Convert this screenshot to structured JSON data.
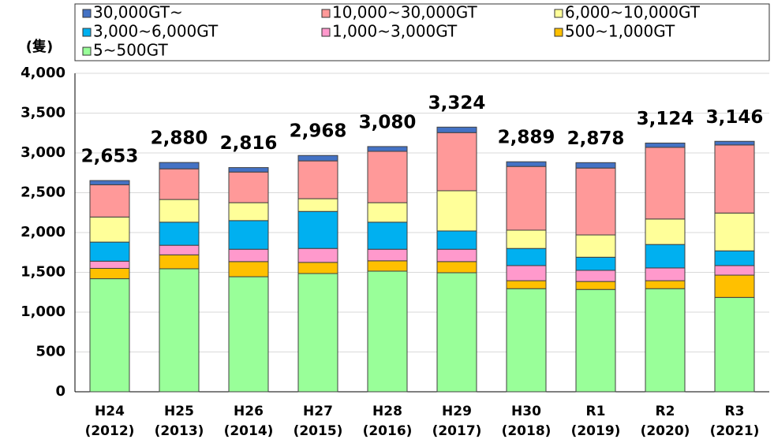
{
  "chart_data": {
    "type": "stacked_bar",
    "y_axis_label": "(隻)",
    "categories": [
      "H24",
      "H25",
      "H26",
      "H27",
      "H28",
      "H29",
      "H30",
      "R1",
      "R2",
      "R3"
    ],
    "category_years": [
      "(2012)",
      "(2013)",
      "(2014)",
      "(2015)",
      "(2016)",
      "(2017)",
      "(2018)",
      "(2019)",
      "(2020)",
      "(2021)"
    ],
    "series": [
      {
        "name": "30,000GT~",
        "color": "#4472c4",
        "values": [
          53,
          80,
          56,
          68,
          60,
          69,
          59,
          68,
          54,
          46
        ]
      },
      {
        "name": "10,000~30,000GT",
        "color": "#ff9999",
        "values": [
          405,
          385,
          385,
          475,
          645,
          730,
          800,
          840,
          900,
          855
        ]
      },
      {
        "name": "6,000~10,000GT",
        "color": "#ffff99",
        "values": [
          315,
          285,
          225,
          160,
          245,
          505,
          230,
          280,
          320,
          475
        ]
      },
      {
        "name": "3,000~6,000GT",
        "color": "#00b0f0",
        "values": [
          240,
          290,
          360,
          465,
          340,
          230,
          215,
          165,
          295,
          185
        ]
      },
      {
        "name": "1,000~3,000GT",
        "color": "#ff99cc",
        "values": [
          90,
          120,
          155,
          175,
          145,
          155,
          190,
          140,
          160,
          120
        ]
      },
      {
        "name": "500~1,000GT",
        "color": "#ffc000",
        "values": [
          130,
          175,
          190,
          140,
          130,
          140,
          100,
          100,
          100,
          280
        ]
      },
      {
        "name": "5~500GT",
        "color": "#99ff99",
        "values": [
          1420,
          1545,
          1445,
          1485,
          1515,
          1495,
          1295,
          1285,
          1295,
          1185
        ]
      }
    ],
    "totals": [
      2653,
      2880,
      2816,
      2968,
      3080,
      3324,
      2889,
      2878,
      3124,
      3146
    ],
    "total_labels": [
      "2,653",
      "2,880",
      "2,816",
      "2,968",
      "3,080",
      "3,324",
      "2,889",
      "2,878",
      "3,124",
      "3,146"
    ],
    "ylim": [
      0,
      4000
    ],
    "yticks": [
      0,
      500,
      {
        "value": 1000,
        "label": "1,000"
      },
      {
        "value": 1500,
        "label": "1,500"
      },
      {
        "value": 2000,
        "label": "2,000"
      },
      {
        "value": 2500,
        "label": "2,500"
      },
      {
        "value": 3000,
        "label": "3,000"
      },
      {
        "value": 3500,
        "label": "3,500"
      },
      {
        "value": 4000,
        "label": "4,000"
      }
    ],
    "grid": true
  }
}
